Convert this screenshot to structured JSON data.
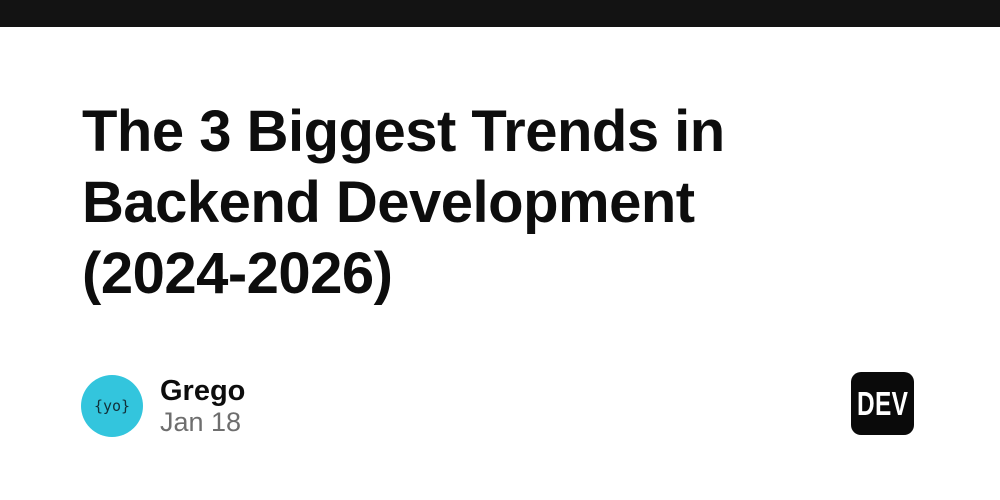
{
  "page": {
    "background": "#ffffff",
    "top_bar_color": "#131313"
  },
  "article": {
    "title": "The 3 Biggest Trends in Backend Development (2024-2026)",
    "title_lines": [
      "The 3 Biggest Trends in",
      "Backend Development",
      "(2024-2026)"
    ],
    "title_color": "#0d0d0d"
  },
  "author": {
    "name": "Grego",
    "date": "Jan 18",
    "avatar_text": "{yo}",
    "avatar_color": "#33c5dd",
    "avatar_text_color": "#123039",
    "date_color": "#6e6e6e"
  },
  "branding": {
    "logo_text": "DEV",
    "logo_bg": "#0a0a0a",
    "logo_fg": "#ffffff"
  }
}
